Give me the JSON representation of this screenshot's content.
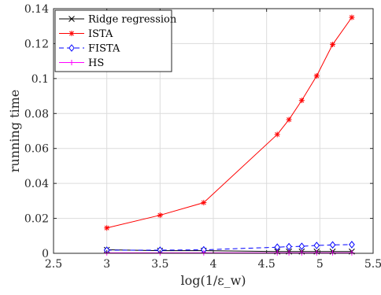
{
  "chart_data": {
    "type": "line",
    "title": "",
    "xlabel": "log(1/ε_w)",
    "ylabel": "running time",
    "xlim": [
      2.5,
      5.5
    ],
    "ylim": [
      0,
      0.14
    ],
    "xticks": [
      2.5,
      3,
      3.5,
      4,
      4.5,
      5,
      5.5
    ],
    "yticks": [
      0,
      0.02,
      0.04,
      0.06,
      0.08,
      0.1,
      0.12,
      0.14
    ],
    "xtick_labels": [
      "2.5",
      "3",
      "3.5",
      "4",
      "4.5",
      "5",
      "5.5"
    ],
    "ytick_labels": [
      "0",
      "0.02",
      "0.04",
      "0.06",
      "0.08",
      "0.1",
      "0.12",
      "0.14"
    ],
    "grid": true,
    "legend_position": "top-left",
    "x": [
      3.0,
      3.5,
      3.91,
      4.6,
      4.71,
      4.83,
      4.97,
      5.12,
      5.3
    ],
    "series": [
      {
        "name": "Ridge regression",
        "color": "#000000",
        "marker": "x",
        "dash": "solid",
        "values": [
          0.002,
          0.0015,
          0.0015,
          0.001,
          0.001,
          0.001,
          0.001,
          0.001,
          0.001
        ]
      },
      {
        "name": "ISTA",
        "color": "#ff0000",
        "marker": "star",
        "dash": "solid",
        "values": [
          0.0145,
          0.0218,
          0.029,
          0.068,
          0.0765,
          0.0875,
          0.1015,
          0.1195,
          0.135
        ]
      },
      {
        "name": "FISTA",
        "color": "#0000ff",
        "marker": "diamond",
        "dash": "dashed",
        "values": [
          0.0018,
          0.0018,
          0.002,
          0.0035,
          0.0038,
          0.004,
          0.0045,
          0.0048,
          0.005
        ]
      },
      {
        "name": "HS",
        "color": "#ff00ff",
        "marker": "plus",
        "dash": "solid",
        "values": [
          0.0003,
          0.0003,
          0.0003,
          0.0003,
          0.0003,
          0.0003,
          0.0003,
          0.0003,
          0.0003
        ]
      }
    ]
  }
}
